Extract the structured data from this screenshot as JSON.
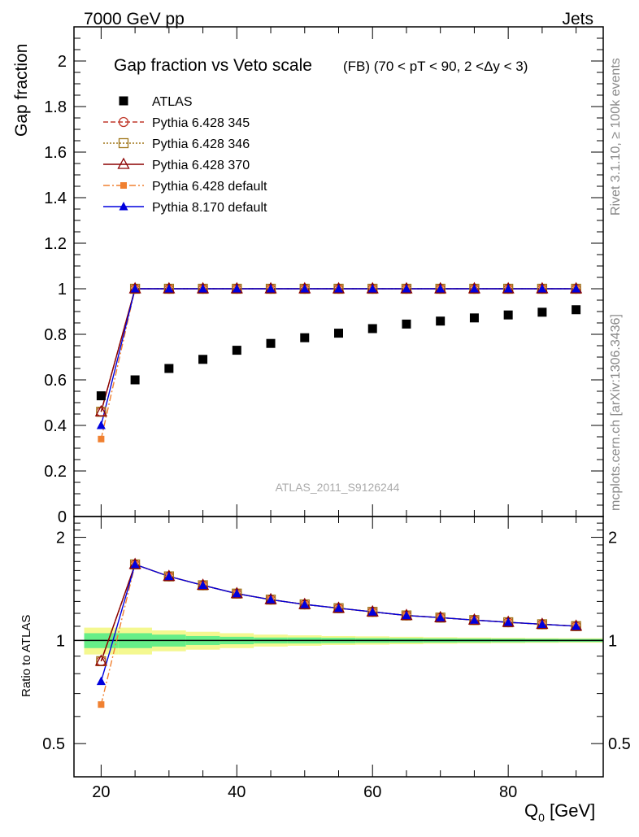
{
  "header": {
    "left": "7000 GeV pp",
    "right": "Jets"
  },
  "side_labels": {
    "rivet": "Rivet 3.1.10, ≥ 100k events",
    "mcplots": "mcplots.cern.ch [arXiv:1306.3436]"
  },
  "chart_data": {
    "type": "scatter",
    "title_main": "Gap fraction vs Veto scale",
    "title_sub": "(FB) (70 < pT <  90, 2 <Δy < 3)",
    "analysis_id": "ATLAS_2011_S9126244",
    "xlabel": "Q",
    "xlabel_sub": "0",
    "xlabel_unit": " [GeV]",
    "ylabel_main": "Gap fraction",
    "ylabel_ratio": "Ratio to ATLAS",
    "xlim": [
      16,
      94
    ],
    "ylim_main": [
      0,
      2.15
    ],
    "ylim_ratio": [
      0.4,
      2.3
    ],
    "x_ticks": [
      20,
      40,
      60,
      80
    ],
    "x_tick_labels": [
      "20",
      "40",
      "60",
      "80"
    ],
    "y_ticks_main": [
      0,
      0.2,
      0.4,
      0.6,
      0.8,
      1,
      1.2,
      1.4,
      1.6,
      1.8,
      2
    ],
    "y_tick_labels_main": [
      "0",
      "0.2",
      "0.4",
      "0.6",
      "0.8",
      "1",
      "1.2",
      "1.4",
      "1.6",
      "1.8",
      "2"
    ],
    "y_ticks_ratio": [
      0.5,
      1,
      2
    ],
    "y_tick_labels_ratio": [
      "0.5",
      "1",
      "2"
    ],
    "x": [
      20,
      25,
      30,
      35,
      40,
      45,
      50,
      55,
      60,
      65,
      70,
      75,
      80,
      85,
      90
    ],
    "data": {
      "name": "ATLAS",
      "values": [
        0.53,
        0.6,
        0.65,
        0.69,
        0.73,
        0.76,
        0.785,
        0.805,
        0.825,
        0.845,
        0.858,
        0.872,
        0.885,
        0.897,
        0.908
      ]
    },
    "series": [
      {
        "name": "Pythia 6.428 345",
        "color": "#c0392b",
        "dash": "6,3",
        "marker": "circle-open",
        "values": [
          0.46,
          1,
          1,
          1,
          1,
          1,
          1,
          1,
          1,
          1,
          1,
          1,
          1,
          1,
          1
        ],
        "ratio": [
          0.87,
          1.667,
          1.538,
          1.449,
          1.37,
          1.316,
          1.274,
          1.242,
          1.212,
          1.183,
          1.166,
          1.147,
          1.13,
          1.115,
          1.101
        ]
      },
      {
        "name": "Pythia 6.428 346",
        "color": "#a0761a",
        "dash": "2,2",
        "marker": "square-open",
        "values": [
          0.46,
          1,
          1,
          1,
          1,
          1,
          1,
          1,
          1,
          1,
          1,
          1,
          1,
          1,
          1
        ],
        "ratio": [
          0.87,
          1.667,
          1.538,
          1.449,
          1.37,
          1.316,
          1.274,
          1.242,
          1.212,
          1.183,
          1.166,
          1.147,
          1.13,
          1.115,
          1.101
        ]
      },
      {
        "name": "Pythia 6.428 370",
        "color": "#8b0000",
        "dash": "",
        "marker": "triangle-open",
        "values": [
          0.46,
          1,
          1,
          1,
          1,
          1,
          1,
          1,
          1,
          1,
          1,
          1,
          1,
          1,
          1
        ],
        "ratio": [
          0.87,
          1.667,
          1.538,
          1.449,
          1.37,
          1.316,
          1.274,
          1.242,
          1.212,
          1.183,
          1.166,
          1.147,
          1.13,
          1.115,
          1.101
        ]
      },
      {
        "name": "Pythia 6.428 default",
        "color": "#f08030",
        "dash": "8,3,2,3",
        "marker": "square-filled",
        "values": [
          0.34,
          1,
          1,
          1,
          1,
          1,
          1,
          1,
          1,
          1,
          1,
          1,
          1,
          1,
          1
        ],
        "ratio": [
          0.65,
          1.667,
          1.538,
          1.449,
          1.37,
          1.316,
          1.274,
          1.242,
          1.212,
          1.183,
          1.166,
          1.147,
          1.13,
          1.115,
          1.101
        ]
      },
      {
        "name": "Pythia 8.170 default",
        "color": "#0000dd",
        "dash": "",
        "marker": "triangle-filled",
        "values": [
          0.4,
          1,
          1,
          1,
          1,
          1,
          1,
          1,
          1,
          1,
          1,
          1,
          1,
          1,
          1
        ],
        "ratio": [
          0.76,
          1.667,
          1.538,
          1.449,
          1.37,
          1.316,
          1.274,
          1.242,
          1.212,
          1.183,
          1.166,
          1.147,
          1.13,
          1.115,
          1.101
        ]
      }
    ],
    "uncertainty_band": {
      "x_edges": [
        17.5,
        22.5,
        27.5,
        32.5,
        37.5,
        42.5,
        47.5,
        52.5,
        57.5,
        62.5,
        67.5,
        72.5,
        77.5,
        82.5,
        87.5,
        94
      ],
      "inner": [
        0.05,
        0.05,
        0.04,
        0.03,
        0.025,
        0.02,
        0.02,
        0.018,
        0.016,
        0.015,
        0.014,
        0.013,
        0.012,
        0.011,
        0.01
      ],
      "outer": [
        0.09,
        0.09,
        0.07,
        0.06,
        0.05,
        0.04,
        0.035,
        0.03,
        0.028,
        0.025,
        0.022,
        0.02,
        0.018,
        0.016,
        0.015
      ],
      "inner_color": "#66ee88",
      "outer_color": "#f4f890"
    }
  }
}
